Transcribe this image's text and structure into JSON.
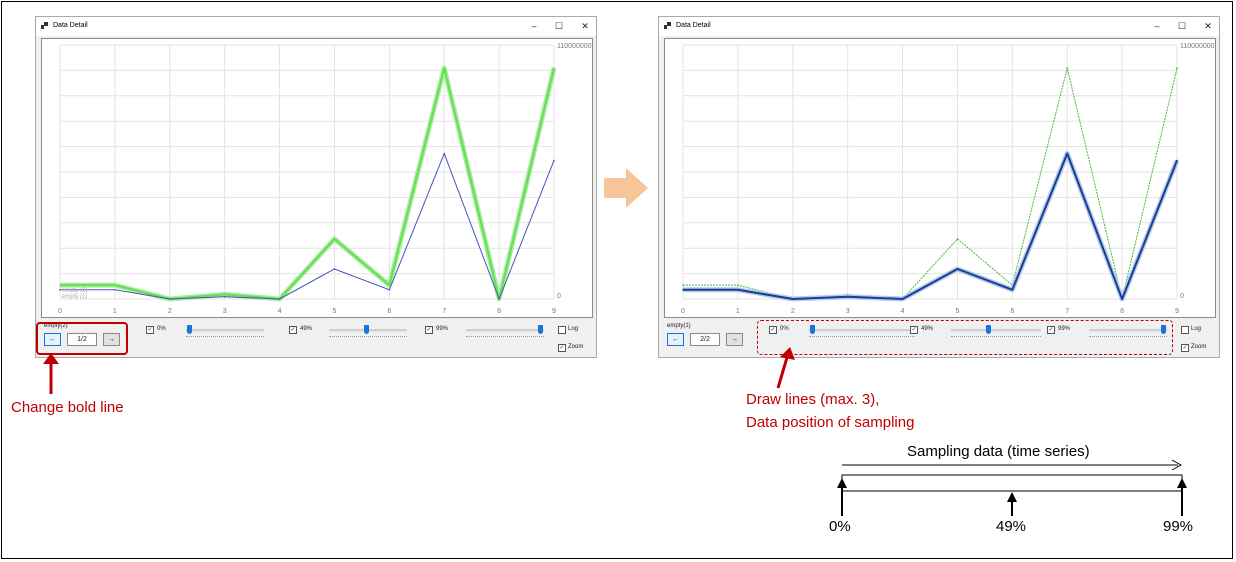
{
  "window_title": "Data Detail",
  "controls": {
    "minimize": "–",
    "maximize": "☐",
    "close": "✕"
  },
  "left": {
    "y_max_label": "110000000",
    "y_min_label": "0",
    "x_ticks": [
      "0",
      "1",
      "2",
      "3",
      "4",
      "5",
      "6",
      "7",
      "8",
      "9"
    ],
    "overlay_labels": [
      "empty (2)",
      "empty (1)"
    ],
    "nav_label": "empty(2)",
    "prev_btn": "←",
    "page": "1/2",
    "next_btn": "→",
    "sliders": [
      {
        "checked": true,
        "label": "0%",
        "value": 0
      },
      {
        "checked": true,
        "label": "49%",
        "value": 49
      },
      {
        "checked": true,
        "label": "99%",
        "value": 99
      }
    ],
    "log_label": "Log",
    "log_checked": false,
    "zoom_label": "Zoom",
    "zoom_checked": true
  },
  "right": {
    "y_max_label": "110000000",
    "y_min_label": "0",
    "x_ticks": [
      "0",
      "1",
      "2",
      "3",
      "4",
      "5",
      "6",
      "7",
      "8",
      "9"
    ],
    "nav_label": "empty(1)",
    "prev_btn": "←",
    "page": "2/2",
    "next_btn": "→",
    "sliders": [
      {
        "checked": true,
        "label": "0%",
        "value": 0
      },
      {
        "checked": true,
        "label": "49%",
        "value": 49
      },
      {
        "checked": true,
        "label": "99%",
        "value": 99
      }
    ],
    "log_label": "Log",
    "log_checked": false,
    "zoom_label": "Zoom",
    "zoom_checked": true
  },
  "annotations": {
    "change_bold_line": "Change bold line",
    "draw_lines_1": "Draw lines (max. 3),",
    "draw_lines_2": "Data position of sampling",
    "sampling_title": "Sampling data (time series)",
    "pct_0": "0%",
    "pct_49": "49%",
    "pct_99": "99%"
  },
  "chart_data": [
    {
      "type": "line",
      "title": "",
      "x": [
        0,
        1,
        2,
        3,
        4,
        5,
        6,
        7,
        8,
        9
      ],
      "ylim": [
        0,
        110000000
      ],
      "series": [
        {
          "name": "empty (2)",
          "bold": true,
          "color": "#66dd55",
          "values": [
            6000000,
            6000000,
            0,
            2000000,
            0,
            26000000,
            6000000,
            100000000,
            0,
            100000000
          ]
        },
        {
          "name": "empty (1)",
          "bold": false,
          "color": "#4455bb",
          "values": [
            4000000,
            4000000,
            0,
            1000000,
            0,
            13000000,
            4000000,
            63000000,
            0,
            60000000
          ]
        }
      ]
    },
    {
      "type": "line",
      "title": "",
      "x": [
        0,
        1,
        2,
        3,
        4,
        5,
        6,
        7,
        8,
        9
      ],
      "ylim": [
        0,
        110000000
      ],
      "series": [
        {
          "bold": false,
          "color": "#44bb33",
          "values": [
            6000000,
            6000000,
            0,
            2000000,
            0,
            26000000,
            6000000,
            100000000,
            0,
            100000000
          ]
        },
        {
          "bold": true,
          "color": "#1f3a93",
          "values": [
            4000000,
            4000000,
            0,
            1000000,
            0,
            13000000,
            4000000,
            63000000,
            0,
            60000000
          ]
        }
      ]
    }
  ]
}
